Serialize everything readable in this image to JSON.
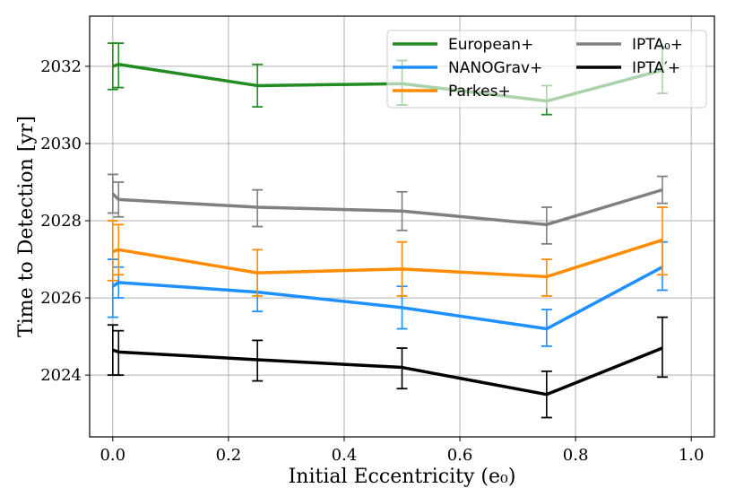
{
  "chart_data": {
    "type": "line",
    "xlabel": "Initial Eccentricity (e₀)",
    "ylabel": "Time to Detection [yr]",
    "xlim": [
      -0.04,
      1.04
    ],
    "ylim": [
      2022.4,
      2033.3
    ],
    "xticks": [
      0.0,
      0.2,
      0.4,
      0.6,
      0.8,
      1.0
    ],
    "xtick_labels": [
      "0.0",
      "0.2",
      "0.4",
      "0.6",
      "0.8",
      "1.0"
    ],
    "yticks": [
      2024,
      2026,
      2028,
      2030,
      2032
    ],
    "ytick_labels": [
      "2024",
      "2026",
      "2028",
      "2030",
      "2032"
    ],
    "grid": true,
    "legend_placement": "top-right",
    "x": [
      0.0,
      0.01,
      0.25,
      0.5,
      0.75,
      0.95
    ],
    "series": [
      {
        "name": "European+",
        "color": "#228b22",
        "values": [
          2032.0,
          2032.05,
          2031.5,
          2031.55,
          2031.1,
          2031.9
        ],
        "err_low": [
          2031.4,
          2031.45,
          2030.95,
          2031.0,
          2030.75,
          2031.3
        ],
        "err_high": [
          2032.6,
          2032.6,
          2032.05,
          2032.15,
          2031.5,
          2032.5
        ]
      },
      {
        "name": "NANOGrav+",
        "color": "#1e90ff",
        "values": [
          2026.3,
          2026.4,
          2026.15,
          2025.75,
          2025.2,
          2026.8
        ],
        "err_low": [
          2025.5,
          2026.0,
          2025.65,
          2025.2,
          2024.75,
          2026.2
        ],
        "err_high": [
          2027.0,
          2026.8,
          2026.65,
          2026.3,
          2025.7,
          2027.45
        ]
      },
      {
        "name": "Parkes+",
        "color": "#ff8c00",
        "values": [
          2027.2,
          2027.25,
          2026.65,
          2026.75,
          2026.55,
          2027.5
        ],
        "err_low": [
          2026.45,
          2026.6,
          2026.05,
          2026.05,
          2026.05,
          2026.6
        ],
        "err_high": [
          2028.0,
          2027.9,
          2027.25,
          2027.45,
          2027.0,
          2028.35
        ]
      },
      {
        "name": "IPTA₀+",
        "color": "#808080",
        "values": [
          2028.7,
          2028.55,
          2028.35,
          2028.25,
          2027.9,
          2028.8
        ],
        "err_low": [
          2028.2,
          2028.1,
          2027.85,
          2027.75,
          2027.4,
          2028.45
        ],
        "err_high": [
          2029.2,
          2029.0,
          2028.8,
          2028.75,
          2028.35,
          2029.15
        ]
      },
      {
        "name": "IPTA′+",
        "color": "#000000",
        "values": [
          2024.65,
          2024.6,
          2024.4,
          2024.2,
          2023.5,
          2024.7
        ],
        "err_low": [
          2024.0,
          2024.0,
          2023.85,
          2023.65,
          2022.9,
          2023.95
        ],
        "err_high": [
          2025.3,
          2025.15,
          2024.9,
          2024.7,
          2024.1,
          2025.5
        ]
      }
    ]
  }
}
